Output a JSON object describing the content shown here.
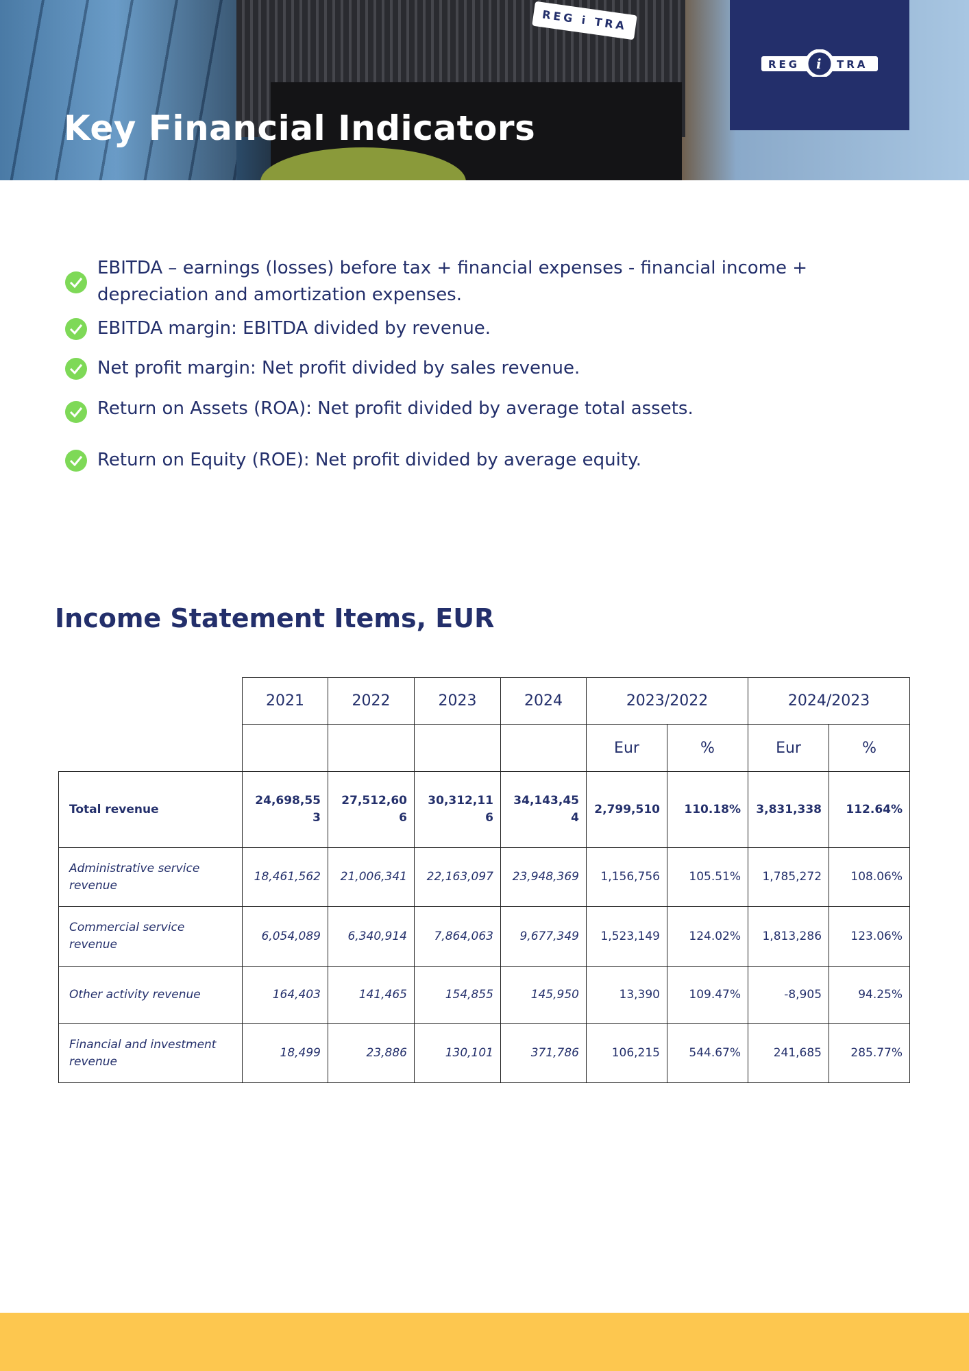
{
  "header": {
    "title": "Key Financial Indicators",
    "logo_text": "REGITRA",
    "brand_color": "#232f6b"
  },
  "bullets": [
    "EBITDA – earnings (losses) before tax + financial expenses - financial income + depreciation and amortization expenses.",
    "EBITDA margin: EBITDA divided by revenue.",
    "Net profit margin: Net profit divided by sales revenue.",
    "Return on Assets (ROA): Net profit divided by average total assets.",
    "Return on Equity (ROE): Net profit divided by average equity."
  ],
  "bullet_icon": "check-circle-icon",
  "bullet_color": "#7ed957",
  "section": {
    "title": "Income Statement Items, EUR"
  },
  "table": {
    "years": [
      "2021",
      "2022",
      "2023",
      "2024"
    ],
    "comparisons": [
      "2023/2022",
      "2024/2023"
    ],
    "sub_headers": [
      "Eur",
      "%",
      "Eur",
      "%"
    ],
    "rows": [
      {
        "label": "Total revenue",
        "values": [
          "24,698,553",
          "27,512,606",
          "30,312,116",
          "34,143,454",
          "2,799,510",
          "110.18%",
          "3,831,338",
          "112.64%"
        ]
      },
      {
        "label": "Administrative service revenue",
        "values": [
          "18,461,562",
          "21,006,341",
          "22,163,097",
          "23,948,369",
          "1,156,756",
          "105.51%",
          "1,785,272",
          "108.06%"
        ]
      },
      {
        "label": "Commercial service revenue",
        "values": [
          "6,054,089",
          "6,340,914",
          "7,864,063",
          "9,677,349",
          "1,523,149",
          "124.02%",
          "1,813,286",
          "123.06%"
        ]
      },
      {
        "label": "Other activity revenue",
        "values": [
          "164,403",
          "141,465",
          "154,855",
          "145,950",
          "13,390",
          "109.47%",
          "-8,905",
          "94.25%"
        ]
      },
      {
        "label": "Financial and investment revenue",
        "values": [
          "18,499",
          "23,886",
          "130,101",
          "371,786",
          "106,215",
          "544.67%",
          "241,685",
          "285.77%"
        ]
      }
    ]
  },
  "footer_color": "#fdc74f"
}
